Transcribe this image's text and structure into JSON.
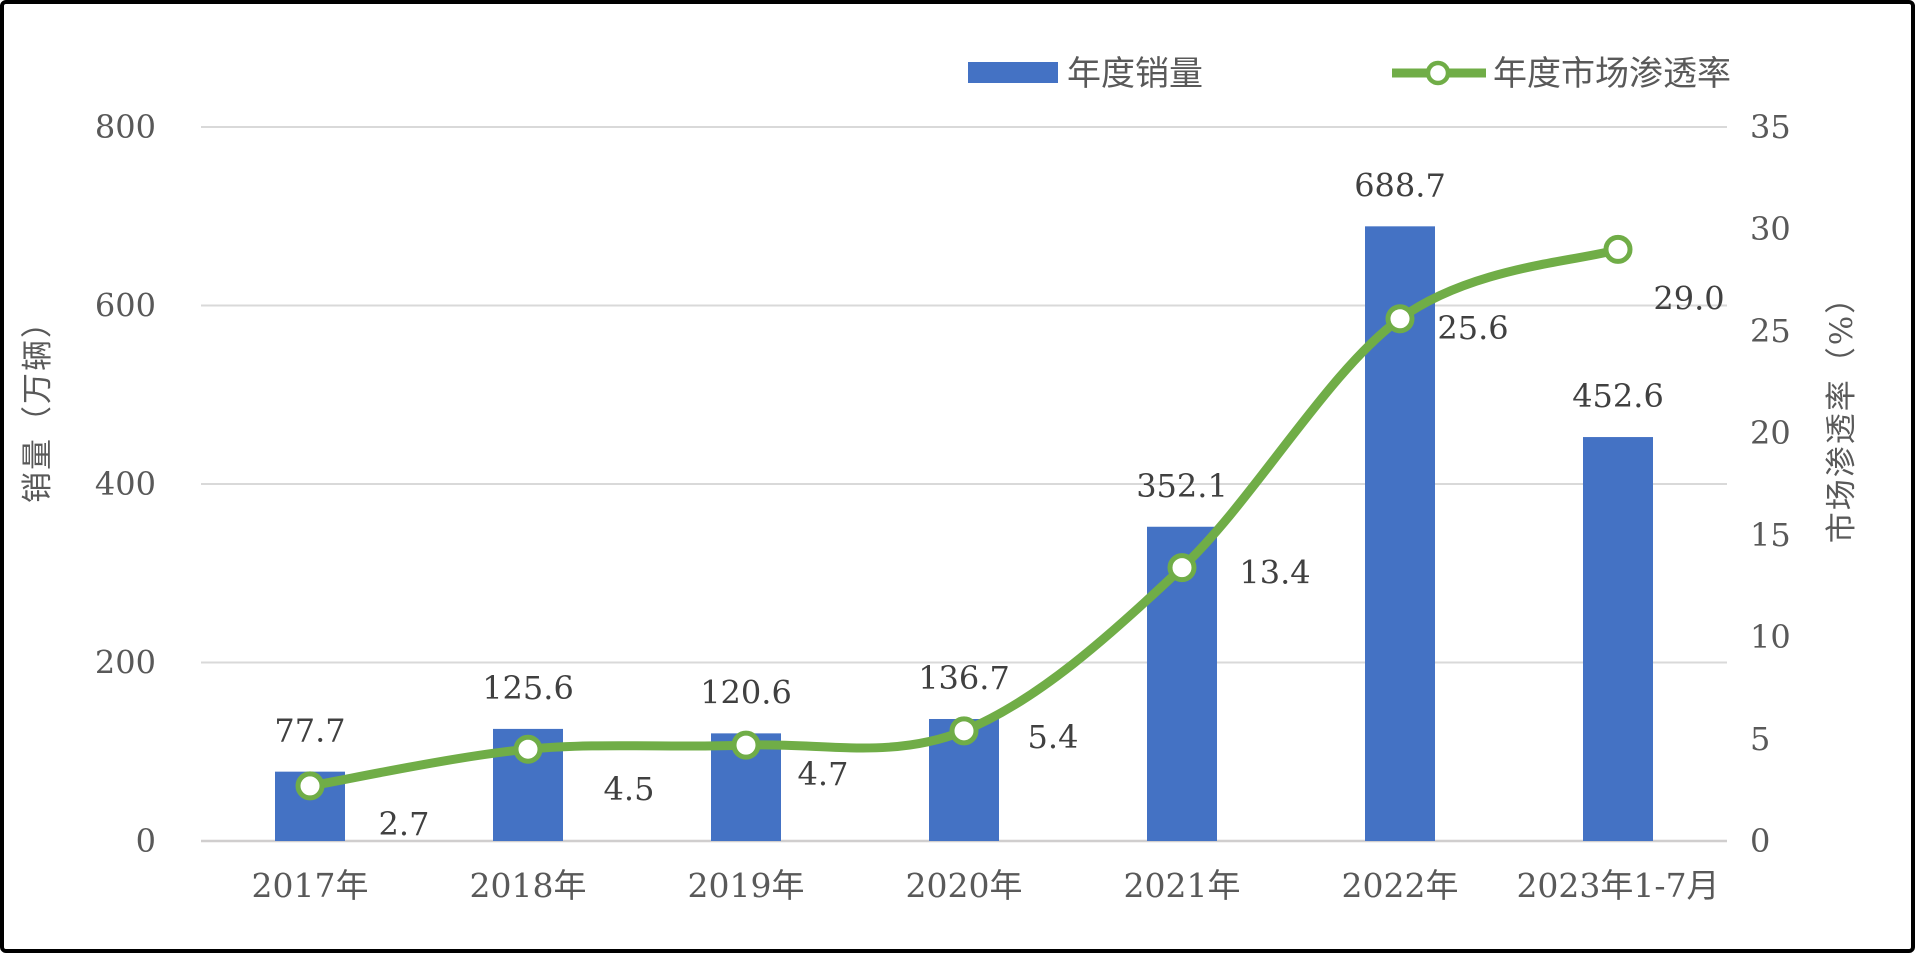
{
  "chart_data": {
    "type": "combo",
    "categories": [
      "2017年",
      "2018年",
      "2019年",
      "2020年",
      "2021年",
      "2022年",
      "2023年1-7月"
    ],
    "series": [
      {
        "name": "年度销量",
        "type": "bar",
        "axis": "left",
        "color": "#4472C4",
        "values": [
          77.7,
          125.6,
          120.6,
          136.7,
          352.1,
          688.7,
          452.6
        ]
      },
      {
        "name": "年度市场渗透率",
        "type": "line",
        "axis": "right",
        "color": "#70AD47",
        "marker": "circle-open",
        "values": [
          2.7,
          4.5,
          4.7,
          5.4,
          13.4,
          25.6,
          29.0
        ]
      }
    ],
    "left_axis": {
      "title": "销量（万辆）",
      "ticks": [
        0,
        200,
        400,
        600,
        800
      ],
      "range": [
        0,
        800
      ]
    },
    "right_axis": {
      "title": "市场渗透率（%）",
      "ticks": [
        0,
        5,
        10,
        15,
        20,
        25,
        30,
        35
      ],
      "range": [
        0,
        35
      ]
    },
    "grid": true,
    "legend_position": "top",
    "colors": {
      "bar": "#4472C4",
      "line": "#70AD47",
      "gridline": "#D9D9D9",
      "axis_line": "#D0CECE",
      "tick_text": "#595959",
      "label_text": "#404040"
    }
  },
  "legend": {
    "items": [
      {
        "label": "年度销量"
      },
      {
        "label": "年度市场渗透率"
      }
    ]
  }
}
